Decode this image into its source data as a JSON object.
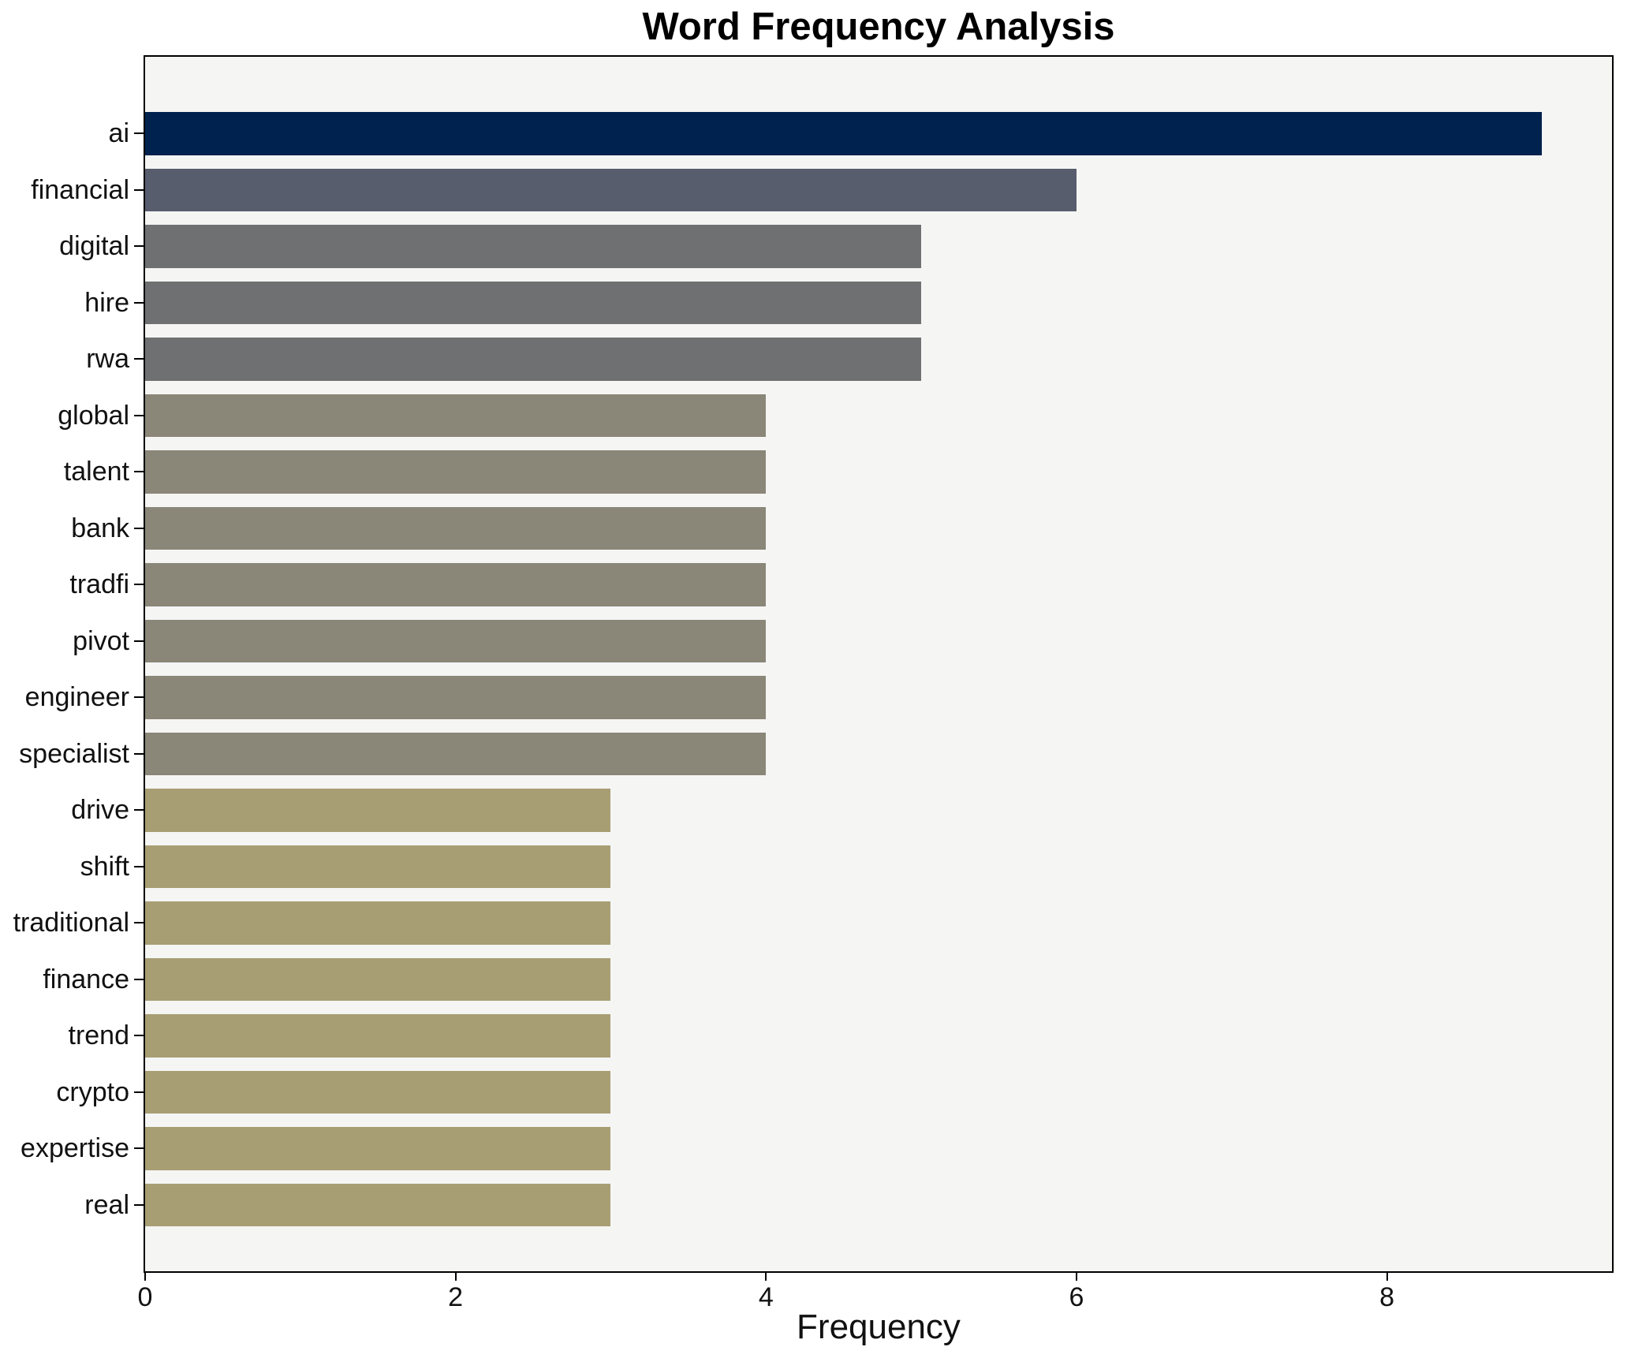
{
  "title": "Word Frequency Analysis",
  "chart_data": {
    "type": "bar",
    "orientation": "horizontal",
    "title": "Word Frequency Analysis",
    "xlabel": "Frequency",
    "ylabel": "",
    "categories": [
      "ai",
      "financial",
      "digital",
      "hire",
      "rwa",
      "global",
      "talent",
      "bank",
      "tradfi",
      "pivot",
      "engineer",
      "specialist",
      "drive",
      "shift",
      "traditional",
      "finance",
      "trend",
      "crypto",
      "expertise",
      "real"
    ],
    "values": [
      9,
      6,
      5,
      5,
      5,
      4,
      4,
      4,
      4,
      4,
      4,
      4,
      3,
      3,
      3,
      3,
      3,
      3,
      3,
      3
    ],
    "xticks": [
      0,
      2,
      4,
      6,
      8
    ],
    "xlim": [
      0,
      9.45
    ],
    "grid": false,
    "legend_position": "none",
    "colors_by_value": {
      "9": "#00224e",
      "6": "#575d6d",
      "5": "#6f7072",
      "4": "#8a8678",
      "3": "#a89e74"
    },
    "plot_background": "#f5f5f4",
    "figure_background": "#ffffff",
    "spine_color": "#000000"
  }
}
